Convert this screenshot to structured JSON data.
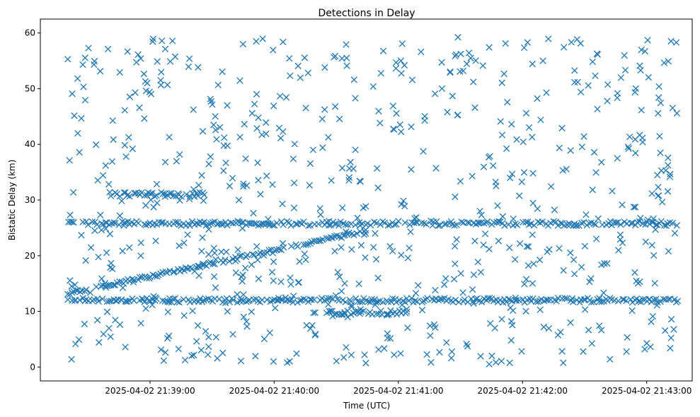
{
  "chart_data": {
    "type": "scatter",
    "title": "Detections in Delay",
    "xlabel": "Time (UTC)",
    "ylabel": "Bistatic Delay (km)",
    "marker": "x",
    "color": "#1f77b4",
    "grid": false,
    "xlim": [
      "2025-04-02 21:38:07",
      "2025-04-02 21:43:22"
    ],
    "ylim": [
      -2.5,
      62.5
    ],
    "x_ticks": [
      "2025-04-02 21:39:00",
      "2025-04-02 21:40:00",
      "2025-04-02 21:41:00",
      "2025-04-02 21:42:00",
      "2025-04-02 21:43:00"
    ],
    "y_ticks": [
      0,
      10,
      20,
      30,
      40,
      50,
      60
    ],
    "x_start": "2025-04-02 21:38:20",
    "x_end": "2025-04-02 21:43:15",
    "tracks": [
      {
        "description": "diagonal rising track",
        "start": "2025-04-02 21:38:20",
        "end": "2025-04-02 21:40:45",
        "y_start": 13.2,
        "y_end": 24.5
      },
      {
        "description": "near-constant track",
        "start": "2025-04-02 21:38:20",
        "end": "2025-04-02 21:43:15",
        "y": 25.8
      },
      {
        "description": "near-constant track",
        "start": "2025-04-02 21:38:20",
        "end": "2025-04-02 21:43:15",
        "y": 12.0
      },
      {
        "description": "near-constant track",
        "start": "2025-04-02 21:38:40",
        "end": "2025-04-02 21:39:25",
        "y": 31.0
      },
      {
        "description": "near-constant track",
        "start": "2025-04-02 21:40:25",
        "end": "2025-04-02 21:41:05",
        "y": 9.8
      }
    ],
    "clutter": {
      "description": "randomly scattered detections",
      "y_range": [
        0.5,
        59.5
      ]
    }
  }
}
